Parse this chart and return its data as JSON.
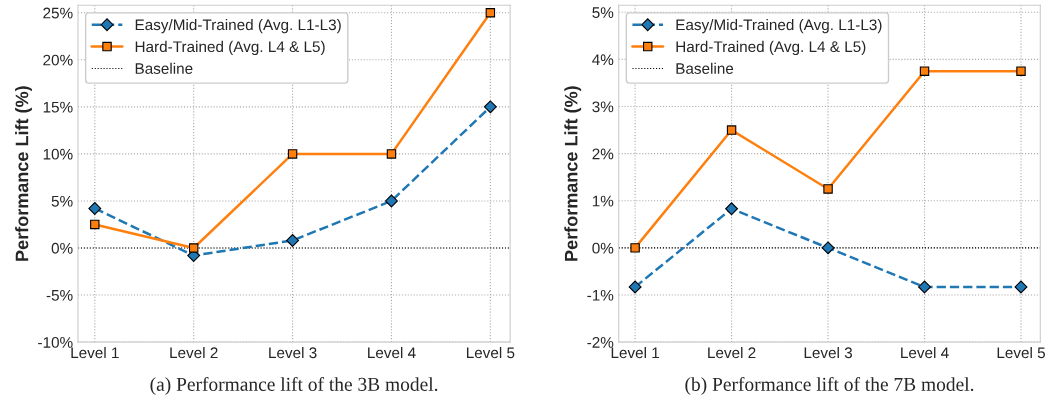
{
  "chart_data": [
    {
      "type": "line",
      "ylabel": "Performance Lift (%)",
      "categories": [
        "Level 1",
        "Level 2",
        "Level 3",
        "Level 4",
        "Level 5"
      ],
      "series": [
        {
          "name": "Easy/Mid-Trained (Avg. L1-L3)",
          "color": "#1f77b4",
          "marker": "diamond",
          "line_style": "dashed",
          "values": [
            4.2,
            -0.8,
            0.8,
            5.0,
            15.0
          ]
        },
        {
          "name": "Hard-Trained (Avg. L4 & L5)",
          "color": "#ff7f0e",
          "marker": "square",
          "line_style": "solid",
          "values": [
            2.5,
            0.0,
            10.0,
            10.0,
            25.0
          ]
        }
      ],
      "ylim": [
        -10,
        25.8
      ],
      "yticks": [
        {
          "value": -10,
          "label": "-10%"
        },
        {
          "value": -5,
          "label": "-5%"
        },
        {
          "value": 0,
          "label": "0%"
        },
        {
          "value": 5,
          "label": "5%"
        },
        {
          "value": 10,
          "label": "10%"
        },
        {
          "value": 15,
          "label": "15%"
        },
        {
          "value": 20,
          "label": "20%"
        },
        {
          "value": 25,
          "label": "25%"
        }
      ],
      "ref_lines": [
        {
          "axis": "y",
          "value": 0,
          "label": "Baseline",
          "color": "#000000",
          "line_style": "dotted"
        }
      ],
      "grid": true,
      "legend": "top left",
      "annotations": [
        "(a) Performance lift of the 3B model."
      ]
    },
    {
      "type": "line",
      "ylabel": "Performance Lift (%)",
      "categories": [
        "Level 1",
        "Level 2",
        "Level 3",
        "Level 4",
        "Level 5"
      ],
      "series": [
        {
          "name": "Easy/Mid-Trained (Avg. L1-L3)",
          "color": "#1f77b4",
          "marker": "diamond",
          "line_style": "dashed",
          "values": [
            -0.83,
            0.83,
            0.0,
            -0.83,
            -0.83
          ]
        },
        {
          "name": "Hard-Trained (Avg. L4 & L5)",
          "color": "#ff7f0e",
          "marker": "square",
          "line_style": "solid",
          "values": [
            0.0,
            2.5,
            1.25,
            3.75,
            3.75
          ]
        }
      ],
      "ylim": [
        -2,
        5.15
      ],
      "yticks": [
        {
          "value": -2,
          "label": "-2%"
        },
        {
          "value": -1,
          "label": "-1%"
        },
        {
          "value": 0,
          "label": "0%"
        },
        {
          "value": 1,
          "label": "1%"
        },
        {
          "value": 2,
          "label": "2%"
        },
        {
          "value": 3,
          "label": "3%"
        },
        {
          "value": 4,
          "label": "4%"
        },
        {
          "value": 5,
          "label": "5%"
        }
      ],
      "ref_lines": [
        {
          "axis": "y",
          "value": 0,
          "label": "Baseline",
          "color": "#000000",
          "line_style": "dotted"
        }
      ],
      "grid": true,
      "legend": "top left",
      "annotations": [
        "(b) Performance lift of the 7B model."
      ]
    }
  ]
}
